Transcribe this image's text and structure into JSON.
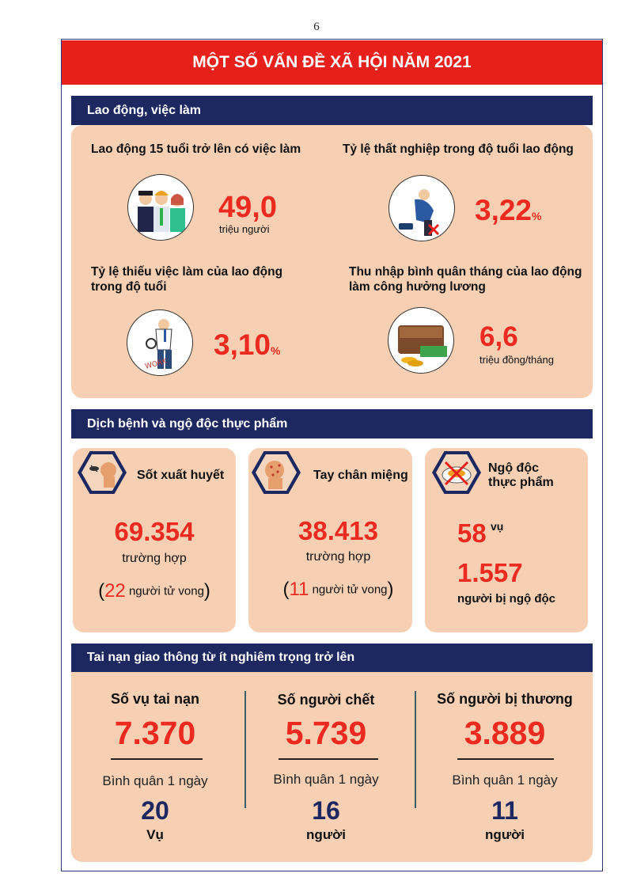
{
  "page_number": "6",
  "title": "MỘT SỐ VẤN ĐỀ XÃ HỘI NĂM 2021",
  "labor": {
    "heading": "Lao động, việc làm",
    "employed": {
      "label": "Lao động 15 tuổi trở lên có việc làm",
      "value": "49,0",
      "unit": "triệu người"
    },
    "unemployment": {
      "label": "Tỷ lệ thất nghiệp trong độ tuổi lao động",
      "value": "3,22",
      "unit": "%"
    },
    "underemployment": {
      "label_line1": "Tỷ lệ thiếu việc làm của lao động",
      "label_line2": "trong độ tuổi",
      "value": "3,10",
      "unit": "%"
    },
    "income": {
      "label_line1": "Thu nhập bình quân tháng của lao động",
      "label_line2": "làm công hưởng lương",
      "value": "6,6",
      "unit": "triệu đồng/tháng"
    }
  },
  "disease": {
    "heading": "Dịch bệnh và ngộ độc thực phẩm",
    "dengue": {
      "label": "Sốt xuất huyết",
      "value": "69.354",
      "unit": "trường hợp",
      "paren_open": "(",
      "deaths": "22",
      "deaths_text": "người tử vong",
      "paren_close": ")"
    },
    "hfmd": {
      "label": "Tay chân miệng",
      "value": "38.413",
      "unit": "trường hợp",
      "paren_open": "(",
      "deaths": "11",
      "deaths_text": "người tử vong",
      "paren_close": ")"
    },
    "food_poisoning": {
      "label_line1": "Ngộ độc",
      "label_line2": "thực phẩm",
      "cases": "58",
      "cases_unit": "vụ",
      "people": "1.557",
      "people_unit": "người bị ngộ độc"
    }
  },
  "traffic": {
    "heading": "Tai nạn giao thông từ ít nghiêm trọng trở lên",
    "columns": [
      {
        "label": "Số vụ tai nạn",
        "value": "7.370",
        "avg_label": "Bình quân 1 ngày",
        "avg_value": "20",
        "avg_unit": "Vụ"
      },
      {
        "label": "Số người chết",
        "value": "5.739",
        "avg_label": "Bình quân 1 ngày",
        "avg_value": "16",
        "avg_unit": "người"
      },
      {
        "label": "Số người bị thương",
        "value": "3.889",
        "avg_label": "Bình quân 1 ngày",
        "avg_value": "11",
        "avg_unit": "người"
      }
    ]
  },
  "colors": {
    "accent_red": "#e8201c",
    "navy": "#1d2860",
    "panel": "#f7cfb3"
  }
}
